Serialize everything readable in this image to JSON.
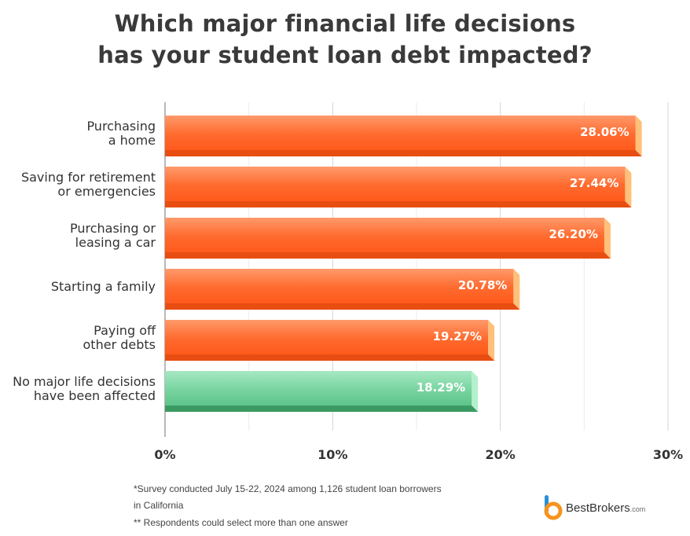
{
  "title_lines": [
    "Which major financial life decisions",
    "has your student loan debt impacted?"
  ],
  "chart_data": {
    "type": "bar",
    "orientation": "horizontal",
    "categories": [
      [
        "Purchasing",
        "a home"
      ],
      [
        "Saving for retirement",
        "or emergencies"
      ],
      [
        "Purchasing or",
        "leasing a car"
      ],
      [
        "Starting a family"
      ],
      [
        "Paying off",
        "other debts"
      ],
      [
        "No major life decisions",
        "have been affected"
      ]
    ],
    "values": [
      28.06,
      27.44,
      26.2,
      20.78,
      19.27,
      18.29
    ],
    "value_labels": [
      "28.06%",
      "27.44%",
      "26.20%",
      "20.78%",
      "19.27%",
      "18.29%"
    ],
    "xlim": [
      0,
      30
    ],
    "xticks": [
      0,
      10,
      20,
      30
    ],
    "xtick_labels": [
      "0%",
      "10%",
      "20%",
      "30%"
    ],
    "grid": "vertical",
    "colors": {
      "orange_top": "#ff9a6a",
      "orange_mid": "#ff6a2e",
      "orange_bottom": "#e84e12",
      "orange_side": "#ffc07a",
      "green_top": "#a6e8c2",
      "green_mid": "#72d29c",
      "green_bottom": "#3a9a62",
      "green_side": "#b5f0cc"
    },
    "highlight_index": 5
  },
  "footnotes": [
    "*Survey conducted July 15-22, 2024 among 1,126 student loan borrowers",
    "in California",
    "** Respondents could select more than one answer"
  ],
  "logo": {
    "name": "BestBrokers",
    "suffix": ".com",
    "icon": "bestbrokers-logo-icon"
  }
}
